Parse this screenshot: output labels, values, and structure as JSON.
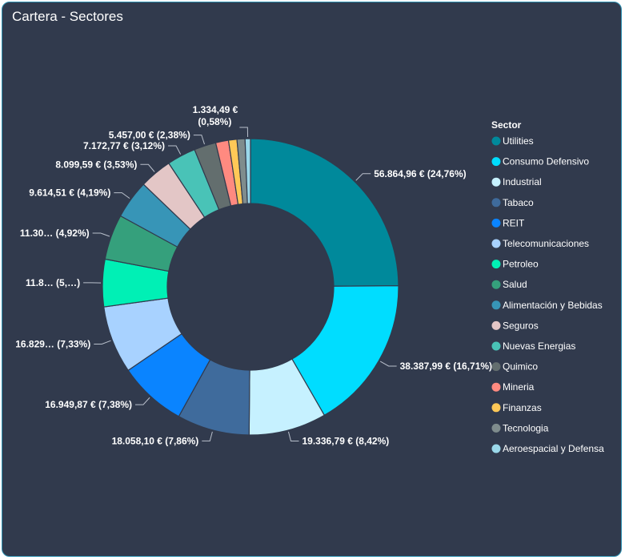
{
  "card": {
    "title": "Cartera - Sectores"
  },
  "chart_data": {
    "type": "pie",
    "variant": "donut",
    "title": "Cartera - Sectores",
    "legend_title": "Sector",
    "legend_position": "right",
    "slices": [
      {
        "name": "Utilities",
        "value": 56864.96,
        "percent": 24.76,
        "label": "56.864,96 € (24,76%)",
        "color": "#00899b"
      },
      {
        "name": "Consumo Defensivo",
        "value": 38387.99,
        "percent": 16.71,
        "label": "38.387,99 € (16,71%)",
        "color": "#00ddff"
      },
      {
        "name": "Industrial",
        "value": 19336.79,
        "percent": 8.42,
        "label": "19.336,79 € (8,42%)",
        "color": "#c6f1ff"
      },
      {
        "name": "Tabaco",
        "value": 18058.1,
        "percent": 7.86,
        "label": "18.058,10 € (7,86%)",
        "color": "#3f6b9c"
      },
      {
        "name": "REIT",
        "value": 16949.87,
        "percent": 7.38,
        "label": "16.949,87 € (7,38%)",
        "color": "#0a84ff"
      },
      {
        "name": "Telecomunicaciones",
        "value": 16829,
        "percent": 7.33,
        "label": "16.829… (7,33%)",
        "color": "#a8d2ff"
      },
      {
        "name": "Petroleo",
        "value": 11800,
        "percent": 5.1,
        "label": "11.8… (5,…)",
        "color": "#00f0b5"
      },
      {
        "name": "Salud",
        "value": 11300,
        "percent": 4.92,
        "label": "11.30… (4,92%)",
        "color": "#35a07c"
      },
      {
        "name": "Alimentación y Bebidas",
        "value": 9614.51,
        "percent": 4.19,
        "label": "9.614,51 € (4,19%)",
        "color": "#3795b7"
      },
      {
        "name": "Seguros",
        "value": 8099.59,
        "percent": 3.53,
        "label": "8.099,59 € (3,53%)",
        "color": "#e3c6c6"
      },
      {
        "name": "Nuevas Energias",
        "value": 7172.77,
        "percent": 3.12,
        "label": "7.172,77 € (3,12%)",
        "color": "#49c3b7"
      },
      {
        "name": "Quimico",
        "value": 5457.0,
        "percent": 2.38,
        "label": "5.457,00 € (2,38%)",
        "color": "#636e6e"
      },
      {
        "name": "Mineria",
        "value": 3200,
        "percent": 1.39,
        "label": "",
        "color": "#ff8a80"
      },
      {
        "name": "Finanzas",
        "value": 2100,
        "percent": 0.91,
        "label": "",
        "color": "#ffc857"
      },
      {
        "name": "Tecnologia",
        "value": 2000,
        "percent": 0.87,
        "label": "",
        "color": "#7f8c8d"
      },
      {
        "name": "Aeroespacial y Defensa",
        "value": 1334.49,
        "percent": 0.58,
        "label": "1.334,49 € (0,58%)",
        "color": "#9ad8ea"
      }
    ]
  }
}
